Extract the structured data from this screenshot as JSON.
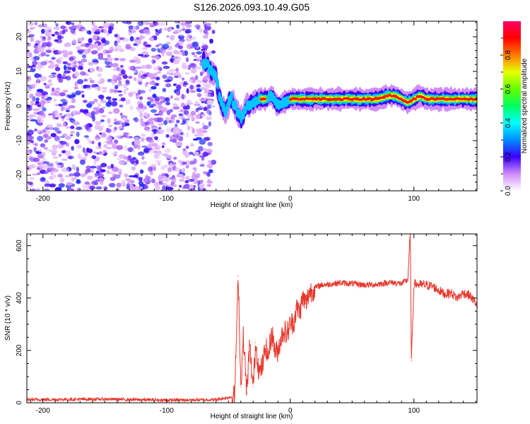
{
  "title": "S126.2026.093.10.49.G05",
  "chart_data": [
    {
      "type": "heatmap",
      "xlabel": "Height of straight line (km)",
      "ylabel": "Frequency (Hz)",
      "xlim": [
        -213,
        151
      ],
      "ylim": [
        -24.5,
        24.5
      ],
      "xticks": [
        -200,
        -100,
        0,
        100
      ],
      "yticks": [
        -20,
        -10,
        0,
        10,
        20
      ],
      "colorbar": {
        "label": "Normalized spectral amplitude",
        "range": [
          0,
          1
        ],
        "ticks": [
          0.0,
          0.2,
          0.4,
          0.6,
          0.8
        ]
      },
      "noise_region": {
        "x_range": [
          -213,
          -62
        ],
        "freq_range": [
          -24.5,
          24.5
        ],
        "amplitude_range": [
          0.0,
          0.2
        ]
      },
      "signal_ridge": {
        "x": [
          -70,
          -65,
          -60,
          -56,
          -52,
          -48,
          -44,
          -40,
          -35,
          -30,
          -25,
          -20,
          -15,
          -10,
          -5,
          0,
          10,
          20,
          40,
          60,
          70,
          80,
          85,
          90,
          95,
          100,
          105,
          110,
          120,
          140,
          151
        ],
        "freq": [
          13,
          11,
          8,
          1,
          -2,
          3,
          -1,
          -4,
          0,
          1,
          2,
          2,
          3,
          0,
          1,
          2,
          2,
          2,
          2,
          2,
          2,
          3,
          3,
          2,
          1,
          2,
          3,
          2,
          2,
          2,
          2
        ],
        "peak_amplitude": 1.0
      }
    },
    {
      "type": "line",
      "xlabel": "Height of straight line (km)",
      "ylabel": "SNR (10 * v/v)",
      "xlim": [
        -213,
        151
      ],
      "ylim": [
        0,
        645
      ],
      "xticks": [
        -200,
        -100,
        0,
        100
      ],
      "yticks": [
        0,
        200,
        400,
        600
      ],
      "color": "#e8352a",
      "series": [
        {
          "name": "SNR",
          "x": [
            -213,
            -150,
            -100,
            -60,
            -45,
            -42,
            -40,
            -38,
            -35,
            -33,
            -30,
            -28,
            -25,
            -22,
            -20,
            -18,
            -15,
            -12,
            -10,
            -8,
            -5,
            -3,
            0,
            3,
            5,
            8,
            10,
            13,
            15,
            18,
            20,
            25,
            30,
            40,
            50,
            60,
            70,
            80,
            90,
            95,
            97,
            98,
            100,
            105,
            110,
            115,
            120,
            125,
            130,
            135,
            140,
            145,
            151
          ],
          "values": [
            12,
            14,
            10,
            12,
            25,
            485,
            60,
            250,
            35,
            220,
            60,
            230,
            110,
            150,
            220,
            170,
            270,
            190,
            200,
            240,
            280,
            260,
            300,
            310,
            360,
            350,
            400,
            380,
            420,
            430,
            440,
            450,
            452,
            458,
            455,
            450,
            452,
            460,
            455,
            470,
            645,
            160,
            455,
            450,
            450,
            445,
            430,
            415,
            420,
            400,
            420,
            410,
            375
          ]
        }
      ]
    }
  ]
}
